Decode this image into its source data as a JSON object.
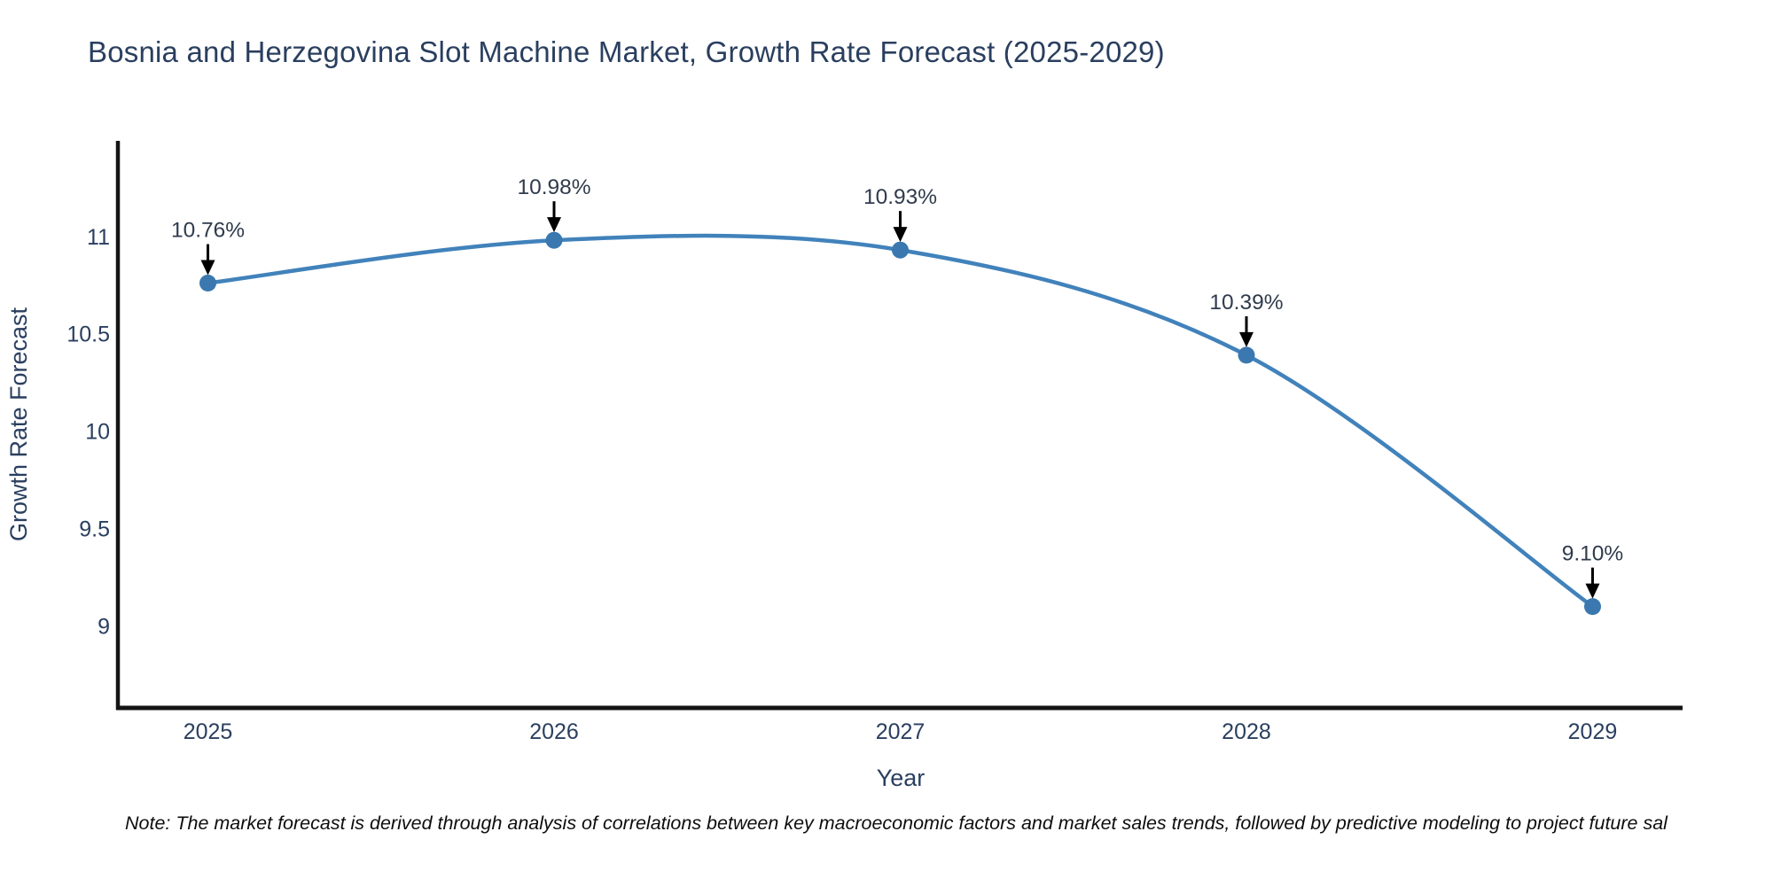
{
  "title": "Bosnia and Herzegovina Slot Machine Market, Growth Rate Forecast (2025-2029)",
  "note": "Note: The market forecast is derived through analysis of correlations between key macroeconomic factors and market sales trends, followed by predictive modeling to project future sal",
  "chart_data": {
    "type": "line",
    "title": "Bosnia and Herzegovina Slot Machine Market, Growth Rate Forecast (2025-2029)",
    "x": [
      2025,
      2026,
      2027,
      2028,
      2029
    ],
    "series": [
      {
        "name": "Growth Rate Forecast",
        "values": [
          10.76,
          10.98,
          10.93,
          10.39,
          9.1
        ]
      }
    ],
    "point_labels": [
      "10.76%",
      "10.98%",
      "10.93%",
      "10.39%",
      "9.10%"
    ],
    "xlabel": "Year",
    "ylabel": "Growth Rate Forecast",
    "xticks": [
      "2025",
      "2026",
      "2027",
      "2028",
      "2029"
    ],
    "ytick_values": [
      9,
      9.5,
      10,
      10.5,
      11
    ],
    "yticks": [
      "9",
      "9.5",
      "10",
      "10.5",
      "11"
    ],
    "xlim": [
      2024.74,
      2029.26
    ],
    "ylim": [
      8.58,
      11.49
    ],
    "line_shape": "spline",
    "grid": false,
    "legend": "none",
    "annotation_arrows": true,
    "colors": {
      "line": "#4182bb",
      "marker": "#3a78af",
      "arrow": "#000000",
      "axis": "#141414",
      "tick_text": "#2a3f5f",
      "annotation_text": "#2f3b4c"
    }
  }
}
